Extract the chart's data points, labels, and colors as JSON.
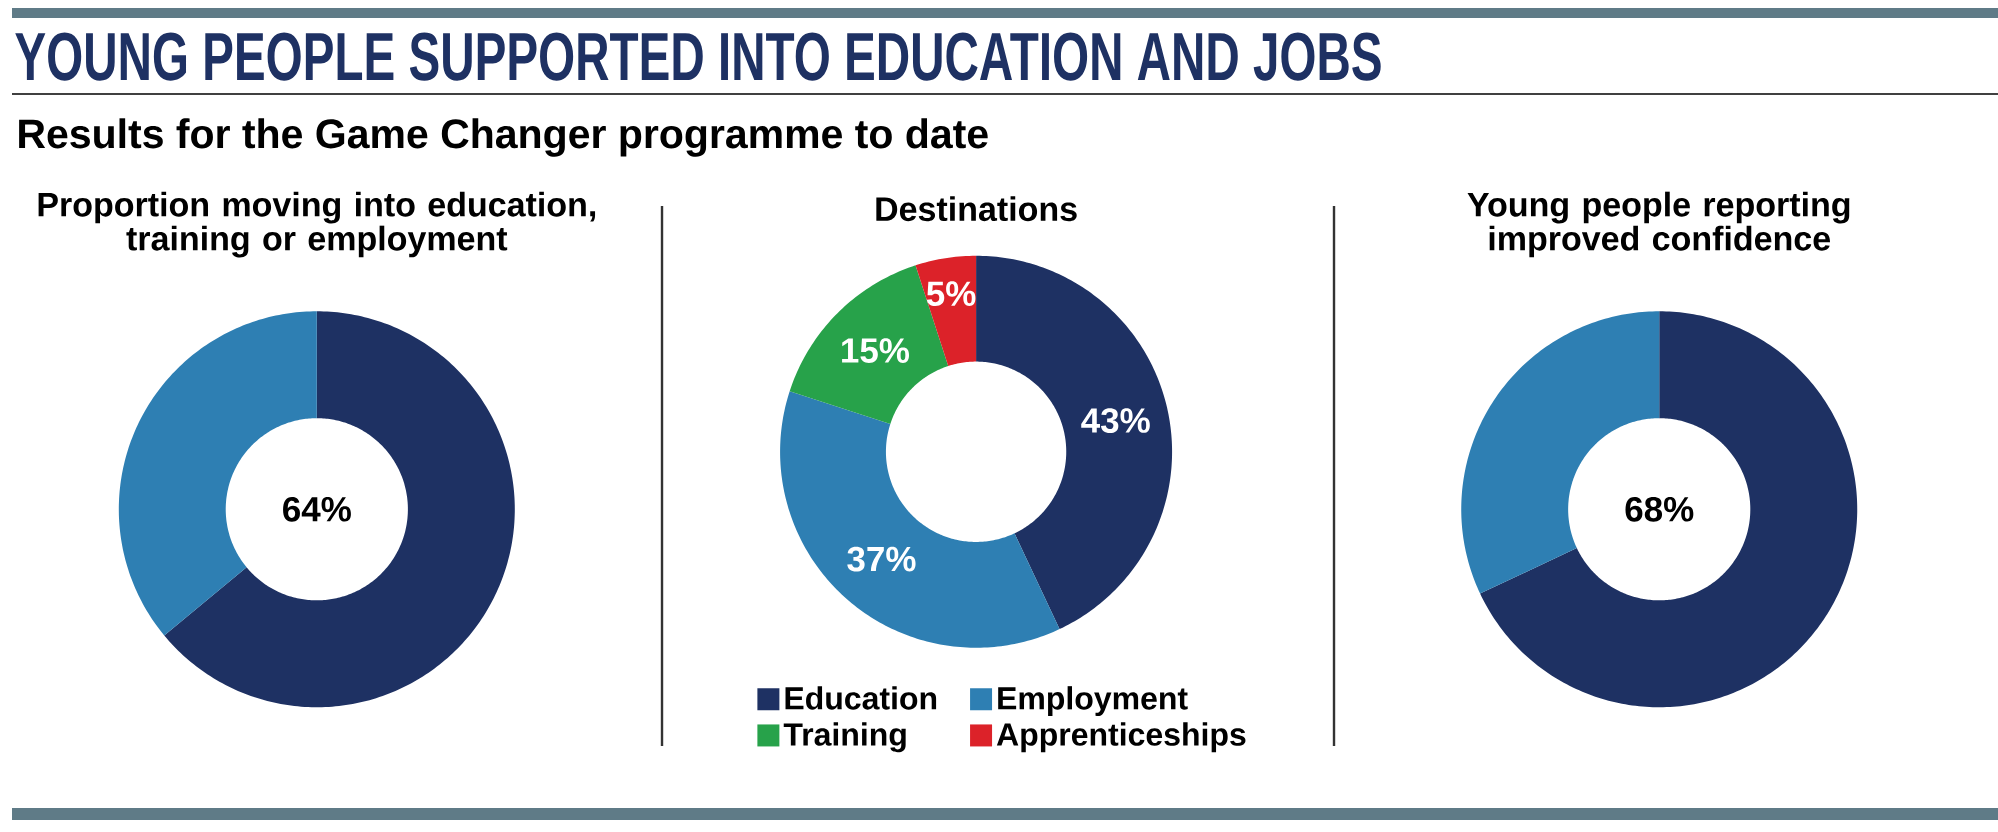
{
  "chart_data": [
    {
      "type": "other",
      "title": "YOUNG PEOPLE SUPPORTED INTO EDUCATION AND JOBS",
      "subtitle": "Results for the Game Changer programme to date"
    },
    {
      "type": "donut",
      "title": "Proportion moving into education, training or employment",
      "categories": [
        null,
        null
      ],
      "values": [
        64,
        36
      ],
      "colors": [
        "#1e3163",
        "#2e7fb3"
      ],
      "value_labels": [
        "64%",
        null
      ]
    },
    {
      "type": "donut",
      "title": "Destinations",
      "categories": [
        "Education",
        "Employment",
        "Training",
        "Apprenticeships"
      ],
      "values": [
        43,
        37,
        15,
        5
      ],
      "colors": [
        "#1e3163",
        "#2e7fb3",
        "#27a24a",
        "#dc2229"
      ],
      "value_labels": [
        "43%",
        "37%",
        "15%",
        "5%"
      ],
      "legend": "bottom"
    },
    {
      "type": "donut",
      "title": "Young people reporting improved confidence",
      "categories": [
        null,
        null
      ],
      "values": [
        68,
        32
      ],
      "colors": [
        "#1e3163",
        "#2e7fb3"
      ],
      "value_labels": [
        "68%",
        null
      ]
    }
  ]
}
